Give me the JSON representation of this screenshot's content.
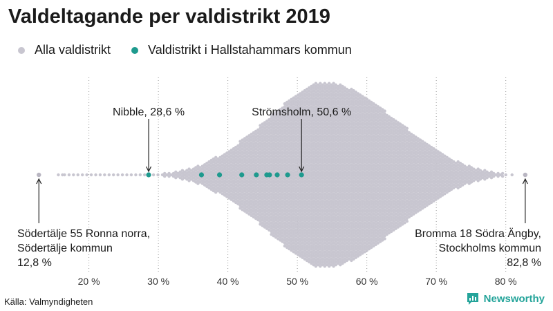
{
  "title": "Valdeltagande per valdistrikt 2019",
  "legend": [
    {
      "label": "Alla valdistrikt",
      "color": "#c8c6d0"
    },
    {
      "label": "Valdistrikt i Hallstahammars kommun",
      "color": "#1e9a8e"
    }
  ],
  "source": "Källa: Valmyndigheten",
  "brand": {
    "name": "Newsworthy",
    "icon": "bar-chart-speech-icon",
    "color": "#24a49a"
  },
  "chart_data": {
    "type": "scatter",
    "subtype": "beeswarm",
    "title": "Valdeltagande per valdistrikt 2019",
    "xlabel": "",
    "ylabel": "",
    "xlim": [
      8,
      86
    ],
    "x_ticks": [
      20,
      30,
      40,
      50,
      60,
      70,
      80
    ],
    "x_tick_labels": [
      "20 %",
      "30 %",
      "40 %",
      "50 %",
      "60 %",
      "70 %",
      "80 %"
    ],
    "grid": "vertical dotted",
    "series": [
      {
        "name": "Alla valdistrikt",
        "color": "#c8c6d0",
        "distribution": {
          "min": 12.8,
          "max": 82.8,
          "mode": 54,
          "description": "approx. 6000 districts, density peaks near 54 %"
        }
      },
      {
        "name": "Valdistrikt i Hallstahammars kommun",
        "color": "#1e9a8e",
        "values": [
          28.6,
          36.2,
          38.8,
          42.0,
          44.1,
          45.6,
          46.0,
          47.1,
          48.6,
          50.6
        ]
      }
    ],
    "annotations": [
      {
        "lines": [
          "Nibble, 28,6 %"
        ],
        "x": 28.6,
        "position": "above",
        "align": "center"
      },
      {
        "lines": [
          "Strömsholm, 50,6 %"
        ],
        "x": 50.6,
        "position": "above",
        "align": "center"
      },
      {
        "lines": [
          "Södertälje 55 Ronna norra,",
          "Södertälje kommun",
          "12,8 %"
        ],
        "x": 12.8,
        "position": "below",
        "align": "left"
      },
      {
        "lines": [
          "Bromma 18 Södra Ängby,",
          "Stockholms kommun",
          "82,8 %"
        ],
        "x": 82.8,
        "position": "below",
        "align": "right"
      }
    ]
  }
}
